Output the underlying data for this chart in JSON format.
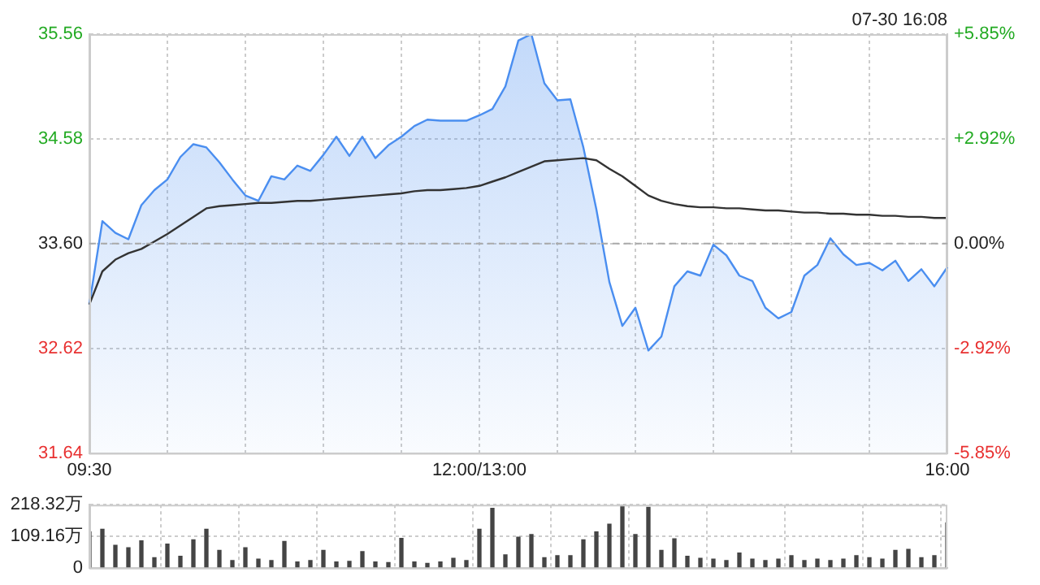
{
  "chart_data": [
    {
      "type": "area",
      "annotations": [
        "07-30 16:08"
      ],
      "categories": [
        "09:30",
        null,
        null,
        null,
        null,
        null,
        null,
        null,
        null,
        null,
        null,
        null,
        null,
        null,
        null,
        null,
        null,
        null,
        null,
        null,
        null,
        null,
        null,
        null,
        null,
        null,
        null,
        null,
        null,
        null,
        "12:00/13:00",
        null,
        null,
        null,
        null,
        null,
        null,
        null,
        null,
        null,
        null,
        null,
        null,
        null,
        null,
        null,
        null,
        null,
        null,
        null,
        null,
        null,
        null,
        null,
        null,
        null,
        null,
        null,
        null,
        null,
        null,
        null,
        null,
        null,
        null,
        null,
        "16:00"
      ],
      "ylim": [
        31.64,
        35.56
      ],
      "yticks": [
        31.64,
        32.62,
        {
          "value": 33.6,
          "label": "33.60"
        },
        34.58,
        35.56
      ],
      "y2lim": [
        -5.85,
        5.85
      ],
      "y2ticks": [
        {
          "value": -5.85,
          "label": "-5.85%"
        },
        {
          "value": -2.92,
          "label": "-2.92%"
        },
        {
          "value": 0,
          "label": "0.00%"
        },
        {
          "value": 2.92,
          "label": "+2.92%"
        },
        {
          "value": 5.85,
          "label": "+5.85%"
        }
      ],
      "ref_lines": [
        {
          "axis": "y",
          "value": 33.6,
          "color": "#aaaaaa",
          "line_style": "dashed"
        }
      ],
      "grid": true,
      "legend": false,
      "marker": "none",
      "series": [
        {
          "color": "#4a8ef0",
          "values": [
            33.03,
            33.81,
            33.7,
            33.64,
            33.96,
            34.1,
            34.2,
            34.41,
            34.53,
            34.5,
            34.36,
            34.2,
            34.05,
            34.0,
            34.23,
            34.2,
            34.33,
            34.28,
            34.43,
            34.6,
            34.42,
            34.6,
            34.4,
            34.52,
            34.6,
            34.7,
            34.76,
            34.75,
            34.75,
            34.75,
            34.8,
            34.86,
            35.07,
            35.5,
            35.56,
            35.1,
            34.94,
            34.95,
            34.5,
            33.92,
            33.24,
            32.83,
            33.0,
            32.6,
            32.73,
            33.2,
            33.34,
            33.3,
            33.59,
            33.49,
            33.3,
            33.25,
            33.0,
            32.9,
            32.96,
            33.3,
            33.4,
            33.65,
            33.5,
            33.4,
            33.42,
            33.35,
            33.44,
            33.25,
            33.36,
            33.2,
            33.38
          ]
        },
        {
          "type": "line",
          "color": "#333333",
          "values": [
            33.03,
            33.34,
            33.45,
            33.51,
            33.55,
            33.62,
            33.69,
            33.77,
            33.85,
            33.93,
            33.95,
            33.96,
            33.97,
            33.98,
            33.98,
            33.99,
            34.0,
            34.0,
            34.01,
            34.02,
            34.03,
            34.04,
            34.05,
            34.06,
            34.07,
            34.09,
            34.1,
            34.1,
            34.11,
            34.12,
            34.14,
            34.18,
            34.22,
            34.27,
            34.32,
            34.37,
            34.38,
            34.39,
            34.4,
            34.38,
            34.3,
            34.23,
            34.14,
            34.05,
            34.0,
            33.97,
            33.95,
            33.94,
            33.94,
            33.93,
            33.93,
            33.92,
            33.91,
            33.91,
            33.9,
            33.89,
            33.89,
            33.88,
            33.88,
            33.87,
            33.87,
            33.86,
            33.86,
            33.85,
            33.85,
            33.84,
            33.84
          ]
        }
      ]
    },
    {
      "type": "bar",
      "tick_labels": "y",
      "categories": [
        null,
        null,
        null,
        null,
        null,
        null,
        null,
        null,
        null,
        null,
        null,
        null,
        null,
        null,
        null,
        null,
        null,
        null,
        null,
        null,
        null,
        null,
        null,
        null,
        null,
        null,
        null,
        null,
        null,
        null,
        null,
        null,
        null,
        null,
        null,
        null,
        null,
        null,
        null,
        null,
        null,
        null,
        null,
        null,
        null,
        null,
        null,
        null,
        null,
        null,
        null,
        null,
        null,
        null,
        null,
        null,
        null,
        null,
        null,
        null,
        null,
        null,
        null,
        null,
        null,
        null,
        null
      ],
      "ylim": [
        0,
        218.32
      ],
      "yticks": [
        0,
        {
          "value": 109.16,
          "label": "109.16万"
        },
        {
          "value": 218.32,
          "label": "218.32万"
        }
      ],
      "grid": true,
      "legend": false,
      "series": [
        {
          "color": "#444444",
          "values": [
            124,
            133,
            78,
            69,
            93,
            35,
            82,
            40,
            97,
            133,
            60,
            25,
            69,
            30,
            25,
            91,
            20,
            25,
            60,
            20,
            22,
            56,
            20,
            18,
            102,
            20,
            15,
            20,
            33,
            25,
            133,
            206,
            45,
            106,
            115,
            35,
            42,
            42,
            97,
            124,
            151,
            218,
            115,
            209,
            60,
            100,
            40,
            33,
            30,
            25,
            51,
            30,
            25,
            30,
            42,
            25,
            30,
            25,
            30,
            42,
            35,
            30,
            60,
            64,
            35,
            42,
            155
          ]
        }
      ]
    }
  ]
}
